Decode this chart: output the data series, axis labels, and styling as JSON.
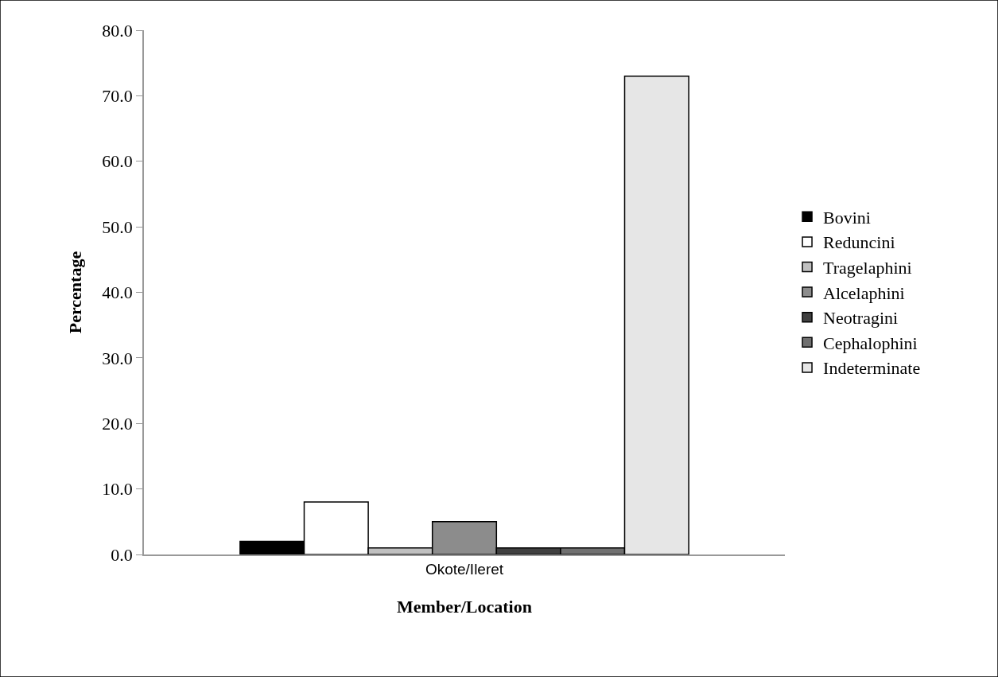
{
  "chart_data": {
    "type": "bar",
    "xlabel": "Member/Location",
    "ylabel": "Percentage",
    "categories": [
      "Okote/Ileret"
    ],
    "series": [
      {
        "name": "Bovini",
        "color": "#000000",
        "values": [
          2
        ]
      },
      {
        "name": "Reduncini",
        "color": "#ffffff",
        "values": [
          8
        ]
      },
      {
        "name": "Tragelaphini",
        "color": "#c0c0c0",
        "values": [
          1
        ]
      },
      {
        "name": "Alcelaphini",
        "color": "#8c8c8c",
        "values": [
          5
        ]
      },
      {
        "name": "Neotragini",
        "color": "#404040",
        "values": [
          1
        ]
      },
      {
        "name": "Cephalophini",
        "color": "#707070",
        "values": [
          1
        ]
      },
      {
        "name": "Indeterminate",
        "color": "#e6e6e6",
        "values": [
          73
        ]
      }
    ],
    "ylim": [
      0,
      80
    ],
    "yticks": [
      {
        "value": 0,
        "label": "0.0"
      },
      {
        "value": 10,
        "label": "10.0"
      },
      {
        "value": 20,
        "label": "20.0"
      },
      {
        "value": 30,
        "label": "30.0"
      },
      {
        "value": 40,
        "label": "40.0"
      },
      {
        "value": 50,
        "label": "50.0"
      },
      {
        "value": 60,
        "label": "60.0"
      },
      {
        "value": 70,
        "label": "70.0"
      },
      {
        "value": 80,
        "label": "80.0"
      }
    ],
    "legend": "right"
  }
}
